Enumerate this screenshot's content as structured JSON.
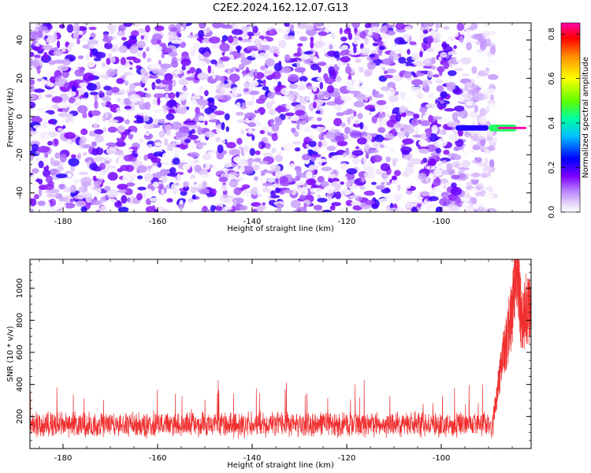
{
  "title": "C2E2.2024.162.12.07.G13",
  "chart_data": [
    {
      "type": "heatmap",
      "xlabel": "Height of straight line (km)",
      "ylabel": "Frequency (Hz)",
      "xlim": [
        -187,
        -81
      ],
      "ylim": [
        -50,
        49
      ],
      "x_ticks": [
        -180,
        -160,
        -140,
        -120,
        -100
      ],
      "y_ticks": [
        -40,
        -20,
        0,
        20,
        40
      ],
      "noise_region": {
        "x_range": [
          -187,
          -89
        ],
        "y_range": [
          -50,
          49
        ],
        "typical_amplitude": [
          0.0,
          0.22
        ]
      },
      "signal": [
        {
          "x_range": [
            -97,
            -90
          ],
          "y_center": -6,
          "y_halfwidth": 1.4,
          "amplitude": 0.22
        },
        {
          "x_range": [
            -90,
            -84
          ],
          "y_center": -6,
          "y_halfwidth": 1.8,
          "amplitude": 0.45
        },
        {
          "x_range": [
            -88,
            -82
          ],
          "y_center": -6,
          "y_halfwidth": 0.6,
          "amplitude": 0.85
        }
      ],
      "colorbar": {
        "label": "Normalized spectral amplitude",
        "range": [
          0,
          0.85
        ],
        "ticks": [
          0.0,
          0.2,
          0.4,
          0.6,
          0.8
        ],
        "stops": [
          {
            "value": 0.0,
            "color": "#ffffff"
          },
          {
            "value": 0.04,
            "color": "#e6d2fa"
          },
          {
            "value": 0.1,
            "color": "#b37aff"
          },
          {
            "value": 0.16,
            "color": "#7f00ff"
          },
          {
            "value": 0.24,
            "color": "#0000ff"
          },
          {
            "value": 0.34,
            "color": "#00c0ff"
          },
          {
            "value": 0.42,
            "color": "#00ffa0"
          },
          {
            "value": 0.5,
            "color": "#60ff00"
          },
          {
            "value": 0.6,
            "color": "#ffff00"
          },
          {
            "value": 0.7,
            "color": "#ff8c00"
          },
          {
            "value": 0.78,
            "color": "#ff0000"
          },
          {
            "value": 0.85,
            "color": "#ff00aa"
          }
        ]
      }
    },
    {
      "type": "line",
      "xlabel": "Height of straight line (km)",
      "ylabel": "SNR (10 * v/v)",
      "xlim": [
        -187,
        -81
      ],
      "ylim": [
        0,
        1180
      ],
      "x_ticks": [
        -180,
        -160,
        -140,
        -120,
        -100
      ],
      "y_ticks": [
        200,
        400,
        600,
        800,
        1000
      ],
      "series": [
        {
          "color": "#f03030",
          "noise_floor": {
            "x_range": [
              -187,
              -89
            ],
            "mean": 150,
            "spread": 70,
            "max_spike": 440
          },
          "rise": [
            {
              "x": -89,
              "y": 200
            },
            {
              "x": -88,
              "y": 380
            },
            {
              "x": -87,
              "y": 560
            },
            {
              "x": -86,
              "y": 700
            },
            {
              "x": -85,
              "y": 860
            },
            {
              "x": -84,
              "y": 1180
            },
            {
              "x": -83,
              "y": 760
            },
            {
              "x": -82,
              "y": 900
            },
            {
              "x": -81,
              "y": 820
            }
          ]
        }
      ]
    }
  ]
}
